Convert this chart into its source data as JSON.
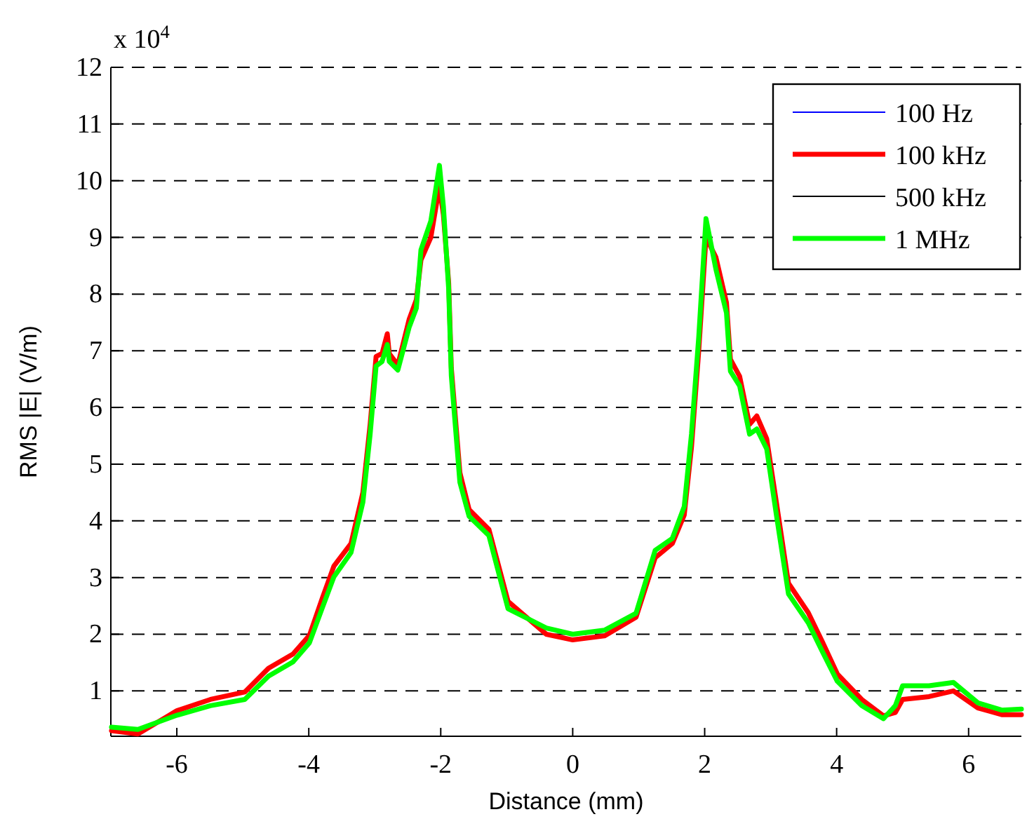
{
  "chart_data": {
    "type": "line",
    "xlabel": "Distance (mm)",
    "ylabel": "RMS |E| (V/m)",
    "annotations": [
      "x 10$^{4}$"
    ],
    "x": [
      -6.99,
      -6.59,
      -6.0,
      -5.49,
      -4.97,
      -4.61,
      -4.24,
      -3.99,
      -3.8,
      -3.62,
      -3.36,
      -3.18,
      -3.07,
      -2.98,
      -2.89,
      -2.81,
      -2.78,
      -2.65,
      -2.48,
      -2.37,
      -2.3,
      -2.15,
      -2.02,
      -1.96,
      -1.88,
      -1.84,
      -1.71,
      -1.57,
      -1.27,
      -0.98,
      -0.4,
      0,
      0.48,
      0.96,
      1.25,
      1.51,
      1.69,
      1.8,
      1.91,
      2.02,
      2.17,
      2.33,
      2.39,
      2.53,
      2.68,
      2.79,
      2.94,
      3.09,
      3.27,
      3.57,
      3.79,
      4.01,
      4.38,
      4.71,
      4.89,
      5.0,
      5.4,
      5.77,
      6.14,
      6.51,
      6.8
    ],
    "series": [
      {
        "name": "100 Hz",
        "color": "#0000ff",
        "values": [
          null,
          null,
          null,
          null,
          null,
          null,
          null,
          null,
          null,
          null,
          null,
          null,
          null,
          null,
          null,
          null,
          null,
          null,
          null,
          null,
          null,
          null,
          null,
          null,
          null,
          null,
          null,
          null,
          null,
          null,
          null,
          null,
          null,
          null,
          null,
          null,
          null,
          null,
          null,
          null,
          null,
          null,
          null,
          null,
          null,
          null,
          null,
          null,
          null,
          null,
          null,
          null,
          null,
          null,
          null,
          null,
          null,
          null,
          null,
          null,
          null
        ]
      },
      {
        "name": "100 kHz",
        "color": "#ff0000",
        "values": [
          0.3,
          0.24,
          0.65,
          0.85,
          0.98,
          1.4,
          1.65,
          1.98,
          2.62,
          3.2,
          3.6,
          4.5,
          5.7,
          6.9,
          6.95,
          7.3,
          6.95,
          6.75,
          7.55,
          7.9,
          8.6,
          9.0,
          9.9,
          9.4,
          8.2,
          6.7,
          4.85,
          4.2,
          3.85,
          2.58,
          2.0,
          1.9,
          1.97,
          2.3,
          3.35,
          3.6,
          4.1,
          5.3,
          7.0,
          9.0,
          8.65,
          7.85,
          6.85,
          6.55,
          5.7,
          5.85,
          5.45,
          4.3,
          2.9,
          2.38,
          1.85,
          1.3,
          0.85,
          0.56,
          0.62,
          0.85,
          0.9,
          1.0,
          0.7,
          0.58,
          0.58
        ]
      },
      {
        "name": "500 kHz",
        "color": "#000000",
        "values": [
          null,
          null,
          null,
          null,
          null,
          null,
          null,
          null,
          null,
          null,
          null,
          null,
          null,
          null,
          null,
          null,
          null,
          null,
          null,
          null,
          null,
          null,
          null,
          null,
          null,
          null,
          null,
          null,
          null,
          null,
          null,
          null,
          null,
          null,
          null,
          null,
          null,
          null,
          null,
          null,
          null,
          null,
          null,
          null,
          null,
          null,
          null,
          null,
          null,
          null,
          null,
          null,
          null,
          null,
          null,
          null,
          null,
          null,
          null,
          null,
          null
        ]
      },
      {
        "name": "1 MHz",
        "color": "#00ff00",
        "values": [
          0.36,
          0.32,
          0.57,
          0.74,
          0.85,
          1.26,
          1.51,
          1.85,
          2.45,
          3.01,
          3.44,
          4.33,
          5.53,
          6.73,
          6.81,
          7.11,
          6.81,
          6.66,
          7.41,
          7.75,
          8.78,
          9.29,
          10.27,
          9.55,
          8.09,
          6.56,
          4.68,
          4.08,
          3.74,
          2.45,
          2.11,
          2.0,
          2.07,
          2.37,
          3.48,
          3.69,
          4.25,
          5.53,
          7.24,
          9.33,
          8.44,
          7.67,
          6.64,
          6.38,
          5.53,
          5.62,
          5.27,
          4.08,
          2.71,
          2.2,
          1.68,
          1.17,
          0.74,
          0.51,
          0.74,
          1.09,
          1.09,
          1.15,
          0.79,
          0.66,
          0.68
        ]
      }
    ],
    "xlim": [
      -7,
      6.8
    ],
    "xticks": [
      -6,
      -4,
      -2,
      0,
      2,
      4,
      6
    ],
    "ylim": [
      0.2,
      12
    ],
    "yticks": [
      1,
      2,
      3,
      4,
      5,
      6,
      7,
      8,
      9,
      10,
      11,
      12
    ],
    "grid": "y",
    "legend": "top right",
    "line_style": "solid",
    "marker": "none"
  }
}
